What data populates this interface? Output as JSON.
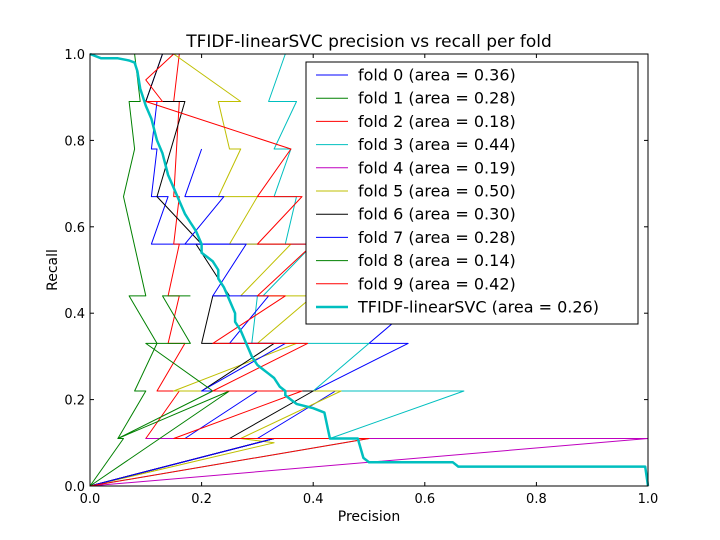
{
  "chart_data": {
    "type": "line",
    "title": "TFIDF-linearSVC precision vs recall per fold",
    "xlabel": "Precision",
    "ylabel": "Recall",
    "xlim": [
      0,
      1
    ],
    "ylim": [
      0,
      1
    ],
    "xticks": [
      "0.0",
      "0.2",
      "0.4",
      "0.6",
      "0.8",
      "1.0"
    ],
    "yticks": [
      "0.0",
      "0.2",
      "0.4",
      "0.6",
      "0.8",
      "1.0"
    ],
    "grid": false,
    "legend_position": "top-right",
    "series": [
      {
        "name": "fold 0 (area = 0.36)",
        "color": "#0000ff",
        "x": [
          0.0,
          0.33,
          0.3,
          0.44,
          0.4,
          0.57,
          0.5,
          0.6,
          0.56,
          0.67,
          0.11,
          0.14,
          0.11,
          0.12,
          0.11,
          0.12,
          0.125,
          0.1,
          0.13,
          0.14,
          0.12
        ],
        "y": [
          0.0,
          0.11,
          0.11,
          0.22,
          0.22,
          0.33,
          0.33,
          0.44,
          0.44,
          0.56,
          0.56,
          0.67,
          0.67,
          0.78,
          0.78,
          0.89,
          0.89,
          0.89,
          1.0,
          1.0,
          1.0
        ]
      },
      {
        "name": "fold 1 (area = 0.28)",
        "color": "#008000",
        "x": [
          0.0,
          0.06,
          0.05,
          0.1,
          0.08,
          0.12,
          0.07,
          0.1,
          0.06,
          0.08,
          0.07,
          0.09,
          0.08,
          0.09,
          0.1
        ],
        "y": [
          0.0,
          0.11,
          0.11,
          0.22,
          0.22,
          0.33,
          0.44,
          0.44,
          0.67,
          0.78,
          0.89,
          0.89,
          1.0,
          1.0,
          1.0
        ]
      },
      {
        "name": "fold 2 (area = 0.18)",
        "color": "#ff0000",
        "x": [
          0.0,
          0.33,
          0.1,
          0.16,
          0.12,
          0.17,
          0.14,
          0.16,
          0.14,
          0.16,
          0.15,
          0.16,
          0.15,
          0.16,
          0.15,
          0.16
        ],
        "y": [
          0.0,
          0.11,
          0.11,
          0.22,
          0.22,
          0.33,
          0.33,
          0.44,
          0.44,
          0.56,
          0.56,
          0.67,
          0.67,
          0.89,
          0.89,
          1.0
        ]
      },
      {
        "name": "fold 3 (area = 0.44)",
        "color": "#00bfbf",
        "x": [
          0.0,
          0.5,
          0.43,
          0.67,
          0.4,
          0.5,
          0.29,
          0.3,
          0.31,
          0.4,
          0.35,
          0.37,
          0.33,
          0.36,
          0.33,
          0.37,
          0.32,
          0.35,
          0.28,
          0.33
        ],
        "y": [
          0.0,
          0.11,
          0.11,
          0.22,
          0.22,
          0.33,
          0.33,
          0.44,
          0.44,
          0.56,
          0.56,
          0.67,
          0.67,
          0.78,
          0.78,
          0.89,
          0.89,
          1.0,
          1.0,
          1.0
        ]
      },
      {
        "name": "fold 4 (area = 0.19)",
        "color": "#bf00bf",
        "x": [
          0.0,
          1.0,
          0.1,
          1.0
        ],
        "y": [
          0.0,
          0.11,
          0.11,
          0.11
        ]
      },
      {
        "name": "fold 5 (area = 0.50)",
        "color": "#bfbf00",
        "x": [
          0.0,
          0.33,
          0.27,
          0.45,
          0.15,
          0.37,
          0.3,
          0.4,
          0.27,
          0.36,
          0.25,
          0.3,
          0.23,
          0.27,
          0.25,
          0.23,
          0.27,
          0.15,
          0.25
        ],
        "y": [
          0.0,
          0.1,
          0.11,
          0.22,
          0.22,
          0.33,
          0.33,
          0.44,
          0.44,
          0.56,
          0.56,
          0.67,
          0.67,
          0.78,
          0.78,
          0.89,
          0.89,
          1.0,
          1.0
        ]
      },
      {
        "name": "fold 6 (area = 0.30)",
        "color": "#000000",
        "x": [
          0.0,
          0.33,
          0.25,
          0.4,
          0.2,
          0.33,
          0.2,
          0.22,
          0.25,
          0.19,
          0.2,
          0.12,
          0.17,
          0.1,
          0.13
        ],
        "y": [
          0.0,
          0.11,
          0.11,
          0.22,
          0.22,
          0.33,
          0.33,
          0.44,
          0.44,
          0.56,
          0.56,
          0.67,
          0.89,
          0.89,
          1.0
        ]
      },
      {
        "name": "fold 7 (area = 0.28)",
        "color": "#0000ff",
        "x": [
          0.0,
          0.33,
          0.17,
          0.3,
          0.2,
          0.35,
          0.25,
          0.32,
          0.22,
          0.28,
          0.17,
          0.24,
          0.17,
          0.2
        ],
        "y": [
          0.0,
          0.11,
          0.11,
          0.22,
          0.22,
          0.33,
          0.33,
          0.44,
          0.44,
          0.56,
          0.56,
          0.67,
          0.67,
          0.78
        ]
      },
      {
        "name": "fold 8 (area = 0.14)",
        "color": "#008000",
        "x": [
          0.0,
          0.25,
          0.05,
          0.22,
          0.1,
          0.18,
          0.13,
          0.18
        ],
        "y": [
          0.0,
          0.22,
          0.11,
          0.22,
          0.33,
          0.33,
          0.44,
          0.44
        ]
      },
      {
        "name": "fold 9 (area = 0.42)",
        "color": "#ff0000",
        "x": [
          0.0,
          0.5,
          0.15,
          0.38,
          0.22,
          0.39,
          0.22,
          0.35,
          0.3,
          0.4,
          0.3,
          0.38,
          0.3,
          0.36,
          0.1,
          0.13,
          0.1,
          0.15,
          0.12,
          0.16
        ],
        "y": [
          0.0,
          0.11,
          0.11,
          0.22,
          0.22,
          0.33,
          0.33,
          0.44,
          0.44,
          0.56,
          0.56,
          0.67,
          0.67,
          0.78,
          0.89,
          0.89,
          0.94,
          1.0,
          1.0,
          1.0
        ]
      },
      {
        "name": "TFIDF-linearSVC (area = 0.26)",
        "color": "#00bfbf",
        "linewidth": 2.5,
        "x": [
          1.0,
          0.995,
          0.66,
          0.65,
          0.5,
          0.49,
          0.48,
          0.43,
          0.42,
          0.4,
          0.37,
          0.36,
          0.35,
          0.35,
          0.34,
          0.33,
          0.32,
          0.31,
          0.3,
          0.29,
          0.28,
          0.27,
          0.26,
          0.26,
          0.25,
          0.24,
          0.23,
          0.23,
          0.22,
          0.21,
          0.2,
          0.2,
          0.19,
          0.18,
          0.17,
          0.16,
          0.15,
          0.14,
          0.13,
          0.12,
          0.11,
          0.1,
          0.09,
          0.085,
          0.08,
          0.07,
          0.05,
          0.02,
          0.0
        ],
        "y": [
          0.0,
          0.045,
          0.045,
          0.055,
          0.055,
          0.065,
          0.11,
          0.11,
          0.17,
          0.18,
          0.19,
          0.2,
          0.21,
          0.22,
          0.23,
          0.25,
          0.26,
          0.27,
          0.28,
          0.3,
          0.33,
          0.36,
          0.38,
          0.4,
          0.43,
          0.46,
          0.48,
          0.5,
          0.52,
          0.53,
          0.54,
          0.56,
          0.59,
          0.61,
          0.63,
          0.66,
          0.69,
          0.72,
          0.77,
          0.8,
          0.85,
          0.88,
          0.92,
          0.96,
          0.98,
          0.985,
          0.99,
          0.99,
          1.0
        ]
      }
    ]
  }
}
